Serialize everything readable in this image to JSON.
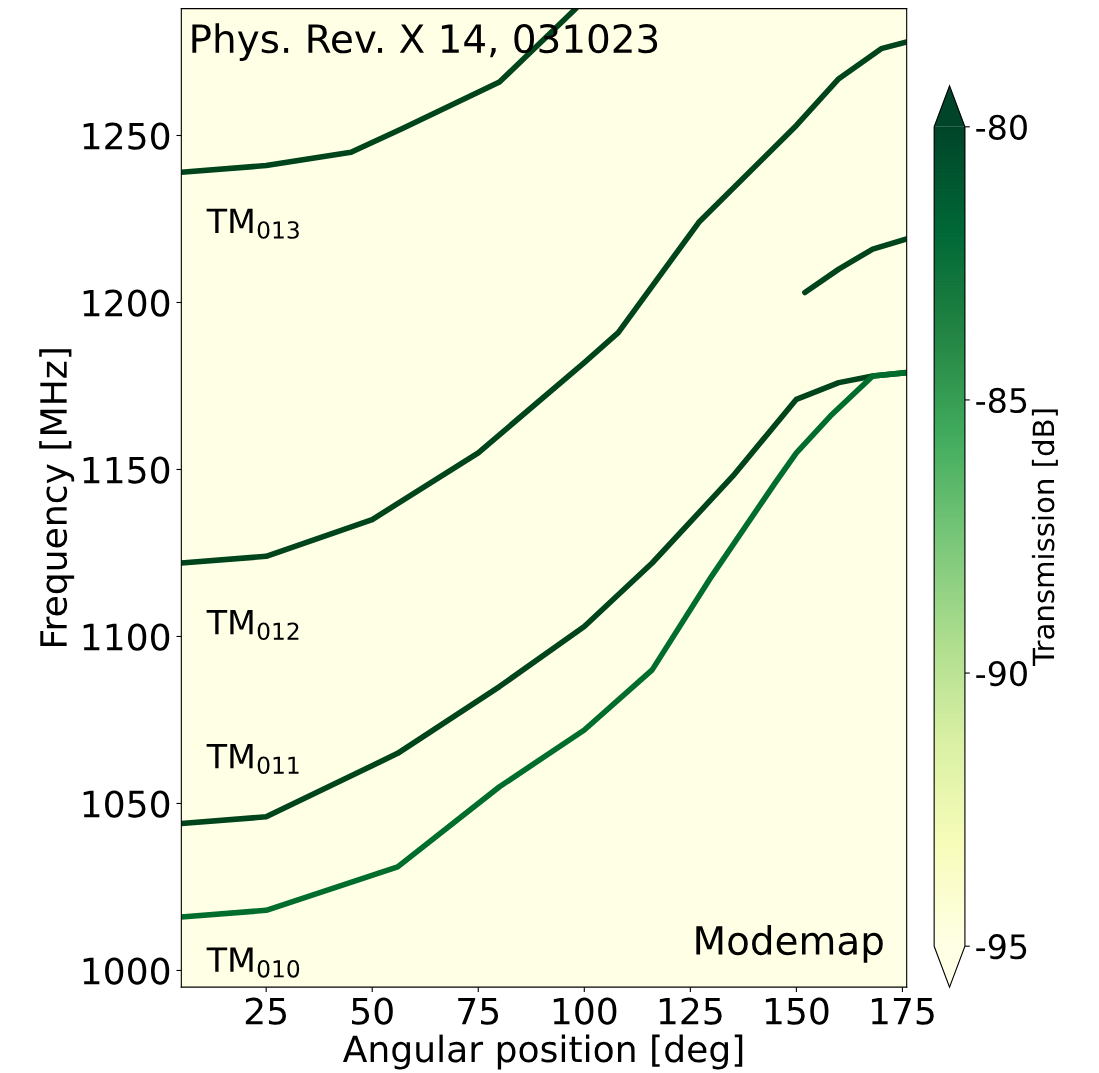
{
  "chart_data": {
    "type": "line",
    "xlabel": "Angular position [deg]",
    "ylabel": "Frequency [MHz]",
    "clabel": "Transmission [dB]",
    "xlim": [
      5,
      176
    ],
    "xticks": [
      25,
      50,
      75,
      100,
      125,
      150,
      175
    ],
    "ylim": [
      995,
      1288
    ],
    "yticks": [
      1000,
      1050,
      1100,
      1150,
      1200,
      1250
    ],
    "clim": [
      -95,
      -80
    ],
    "cticks": [
      -80,
      -85,
      -90,
      -95
    ],
    "grid": false,
    "legend": false,
    "marker": "none",
    "line_style": "solid",
    "series": [
      {
        "color": "#00441b",
        "x": [
          5,
          25,
          45,
          57,
          80,
          98
        ],
        "values": [
          1239,
          1241,
          1245,
          1252,
          1266,
          1288
        ]
      },
      {
        "color": "#00441b",
        "x": [
          5,
          25,
          50,
          75,
          100,
          108,
          127,
          150,
          160,
          170,
          176
        ],
        "values": [
          1122,
          1124,
          1135,
          1155,
          1182,
          1191,
          1224,
          1253,
          1267,
          1276,
          1278
        ]
      },
      {
        "color": "#00441b",
        "x": [
          152,
          160,
          168,
          176
        ],
        "values": [
          1203,
          1210,
          1216,
          1219
        ]
      },
      {
        "color": "#00441b",
        "x": [
          5,
          25,
          56,
          80,
          100,
          116,
          135,
          150,
          160,
          168,
          176
        ],
        "values": [
          1044,
          1046,
          1065,
          1085,
          1103,
          1122,
          1148,
          1171,
          1176,
          1178,
          1179
        ]
      },
      {
        "color": "#006d2c",
        "x": [
          5,
          25,
          56,
          80,
          100,
          116,
          130,
          145,
          150,
          158,
          168,
          176
        ],
        "values": [
          1016,
          1018,
          1031,
          1055,
          1072,
          1090,
          1118,
          1146,
          1155,
          1166,
          1178,
          1179
        ]
      }
    ],
    "annotations": [
      "TM$_{013}$",
      "TM$_{012}$",
      "TM$_{011}$",
      "TM$_{010}$",
      "Phys. Rev. X 14, 031023",
      "Modemap"
    ]
  }
}
